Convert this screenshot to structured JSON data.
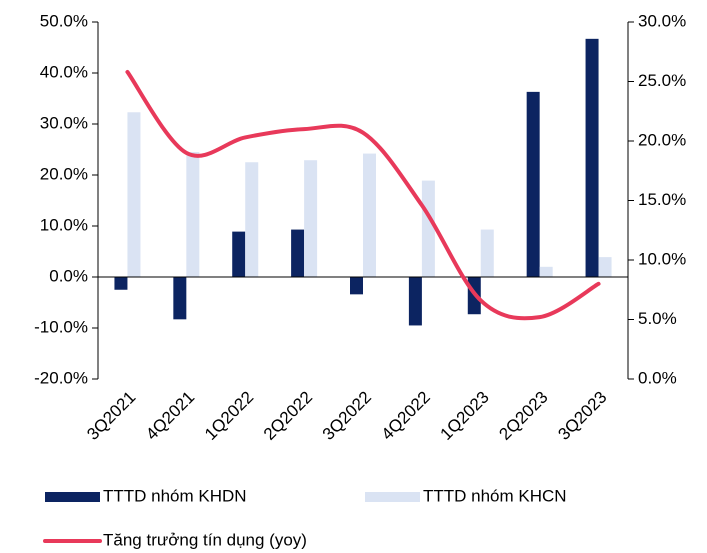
{
  "chart_data": {
    "type": "bar_line",
    "categories": [
      "3Q2021",
      "4Q2021",
      "1Q2022",
      "2Q2022",
      "3Q2022",
      "4Q2022",
      "1Q2023",
      "2Q2023",
      "3Q2023"
    ],
    "series": [
      {
        "name": "TTTD nhóm KHDN",
        "color": "#0c2461",
        "values": [
          -2.5,
          -8.3,
          8.9,
          9.3,
          -3.4,
          -9.5,
          -7.3,
          36.3,
          46.7
        ]
      },
      {
        "name": "TTTD nhóm KHCN",
        "color": "#dae3f3",
        "values": [
          32.3,
          24.5,
          22.5,
          22.9,
          24.2,
          18.9,
          9.3,
          2.0,
          3.9
        ]
      },
      {
        "name": "Tăng trưởng tín dụng (yoy)",
        "color": "#e8395a",
        "axis": "y2",
        "line": true,
        "values": [
          25.8,
          19.0,
          20.3,
          21.0,
          20.7,
          14.6,
          6.6,
          5.2,
          8.0
        ]
      }
    ],
    "ylim": [
      -20,
      50
    ],
    "yticks": [
      {
        "value": -20,
        "label": "-20.0%"
      },
      {
        "value": -10,
        "label": "-10.0%"
      },
      {
        "value": 0,
        "label": "0.0%"
      },
      {
        "value": 10,
        "label": "10.0%"
      },
      {
        "value": 20,
        "label": "20.0%"
      },
      {
        "value": 30,
        "label": "30.0%"
      },
      {
        "value": 40,
        "label": "40.0%"
      },
      {
        "value": 50,
        "label": "50.0%"
      }
    ],
    "y2lim": [
      0,
      30
    ],
    "y2ticks": [
      {
        "value": 0,
        "label": "0.0%"
      },
      {
        "value": 5,
        "label": "5.0%"
      },
      {
        "value": 10,
        "label": "10.0%"
      },
      {
        "value": 15,
        "label": "15.0%"
      },
      {
        "value": 20,
        "label": "20.0%"
      },
      {
        "value": 25,
        "label": "25.0%"
      },
      {
        "value": 30,
        "label": "30.0%"
      }
    ]
  }
}
